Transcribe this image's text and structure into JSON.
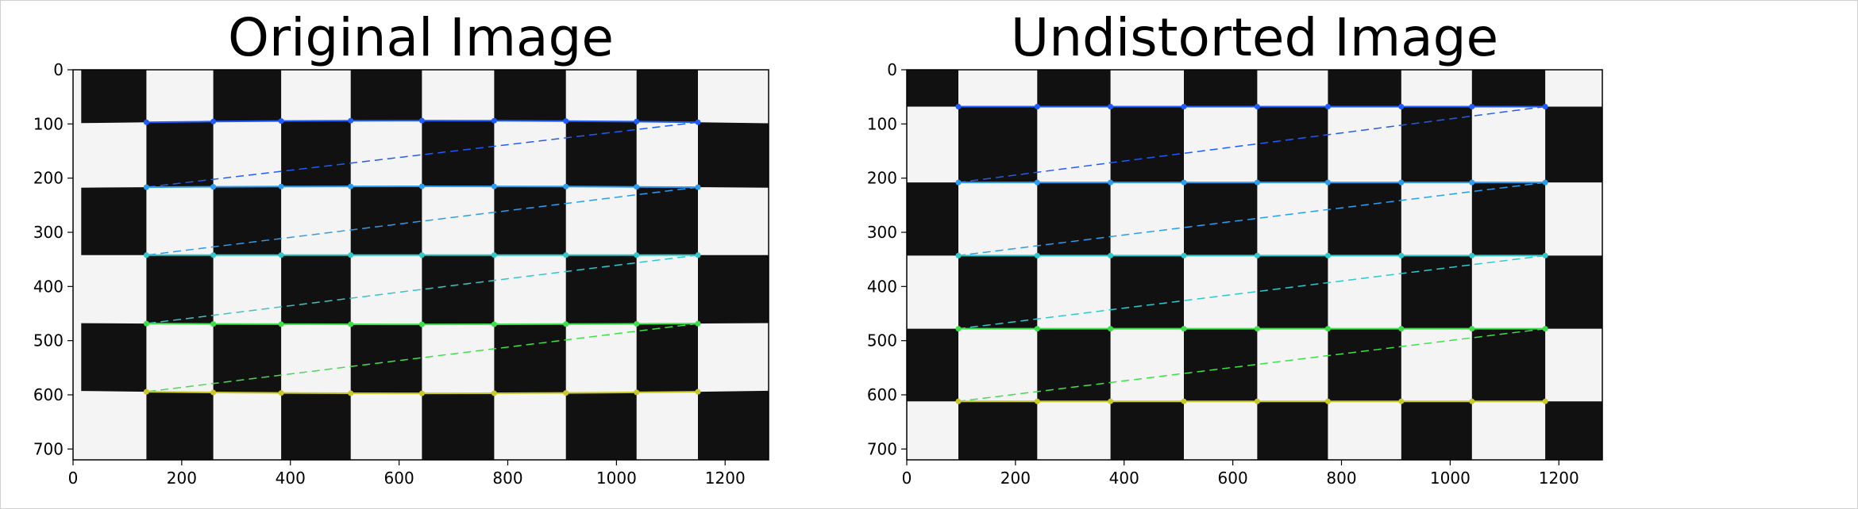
{
  "chart_data": [
    {
      "type": "image",
      "title": "Original Image",
      "xlim": [
        0,
        1280
      ],
      "ylim": [
        720,
        0
      ],
      "xticks": [
        0,
        200,
        400,
        600,
        800,
        1000,
        1200
      ],
      "yticks": [
        0,
        100,
        200,
        300,
        400,
        500,
        600,
        700
      ],
      "distortion": "barrel",
      "detected_corners": true
    },
    {
      "type": "image",
      "title": "Undistorted Image",
      "xlim": [
        0,
        1280
      ],
      "ylim": [
        720,
        0
      ],
      "xticks": [
        0,
        200,
        400,
        600,
        800,
        1000,
        1200
      ],
      "yticks": [
        0,
        100,
        200,
        300,
        400,
        500,
        600,
        700
      ],
      "distortion": "none",
      "detected_corners": true
    }
  ],
  "colors": {
    "corner_rows": [
      "#1f5cff",
      "#2c9cf0",
      "#30c8c8",
      "#3ee04a",
      "#c8c826"
    ],
    "dark_square": "#111111",
    "light_square": "#f4f4f4"
  }
}
